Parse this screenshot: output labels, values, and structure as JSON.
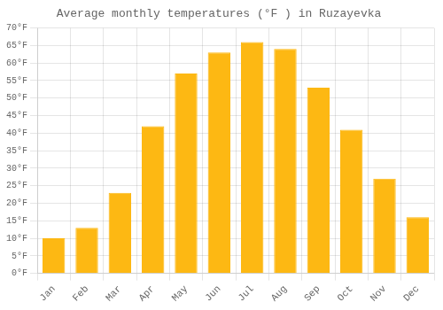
{
  "chart_data": {
    "type": "bar",
    "title": "Average monthly temperatures (°F ) in Ruzayevka",
    "categories": [
      "Jan",
      "Feb",
      "Mar",
      "Apr",
      "May",
      "Jun",
      "Jul",
      "Aug",
      "Sep",
      "Oct",
      "Nov",
      "Dec"
    ],
    "values": [
      10,
      13,
      23,
      42,
      57,
      63,
      66,
      64,
      53,
      41,
      27,
      16
    ],
    "color": "#FDB813",
    "ylim": [
      0,
      70
    ],
    "yticks": [
      {
        "value": 0,
        "label": "0°F"
      },
      {
        "value": 5,
        "label": "5°F"
      },
      {
        "value": 10,
        "label": "10°F"
      },
      {
        "value": 15,
        "label": "15°F"
      },
      {
        "value": 20,
        "label": "20°F"
      },
      {
        "value": 25,
        "label": "25°F"
      },
      {
        "value": 30,
        "label": "30°F"
      },
      {
        "value": 35,
        "label": "35°F"
      },
      {
        "value": 40,
        "label": "40°F"
      },
      {
        "value": 45,
        "label": "45°F"
      },
      {
        "value": 50,
        "label": "50°F"
      },
      {
        "value": 55,
        "label": "55°F"
      },
      {
        "value": 60,
        "label": "60°F"
      },
      {
        "value": 65,
        "label": "65°F"
      },
      {
        "value": 70,
        "label": "70°F"
      }
    ],
    "grid": true
  }
}
